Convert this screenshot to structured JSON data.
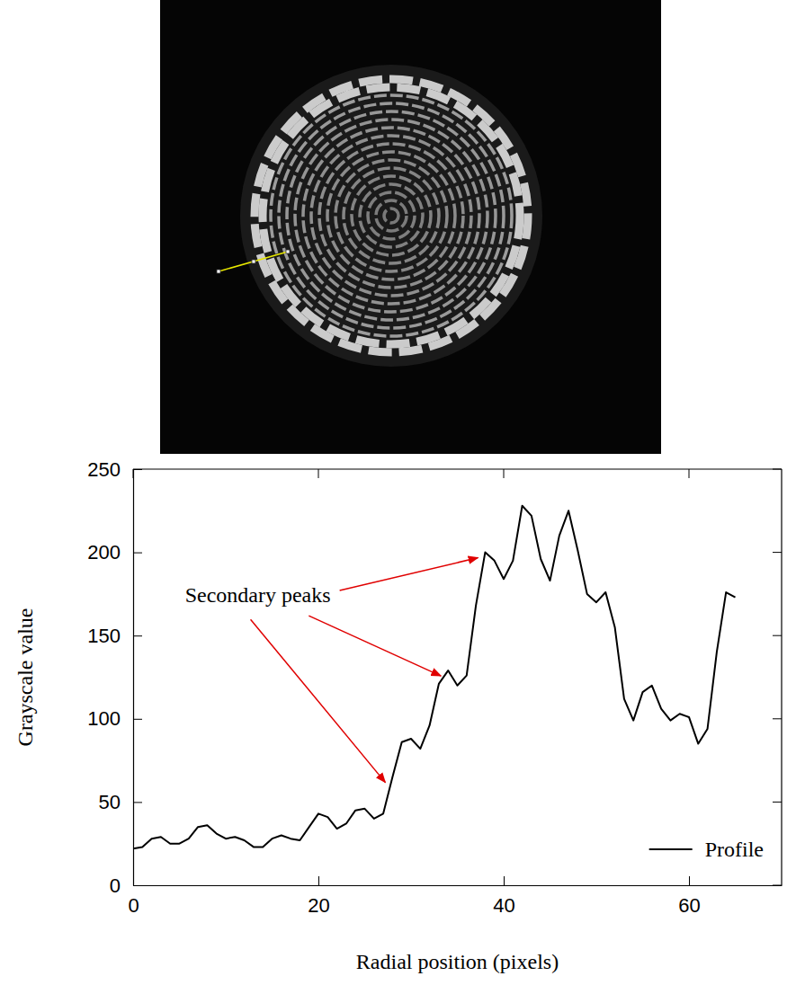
{
  "chart_data": {
    "type": "line",
    "xlabel": "Radial position (pixels)",
    "ylabel": "Grayscale value",
    "x": [
      0,
      1,
      2,
      3,
      4,
      5,
      6,
      7,
      8,
      9,
      10,
      11,
      12,
      13,
      14,
      15,
      16,
      17,
      18,
      19,
      20,
      21,
      22,
      23,
      24,
      25,
      26,
      27,
      28,
      29,
      30,
      31,
      32,
      33,
      34,
      35,
      36,
      37,
      38,
      39,
      40,
      41,
      42,
      43,
      44,
      45,
      46,
      47,
      48,
      49,
      50,
      51,
      52,
      53,
      54,
      55,
      56,
      57,
      58,
      59,
      60,
      61,
      62,
      63,
      64,
      65
    ],
    "series": [
      {
        "name": "Profile",
        "color": "#000000",
        "values": [
          22,
          23,
          28,
          29,
          25,
          25,
          28,
          35,
          36,
          31,
          28,
          29,
          27,
          23,
          23,
          28,
          30,
          28,
          27,
          35,
          43,
          41,
          34,
          37,
          45,
          46,
          40,
          43,
          65,
          86,
          88,
          82,
          96,
          121,
          129,
          120,
          126,
          168,
          200,
          195,
          184,
          195,
          228,
          222,
          196,
          183,
          210,
          225,
          201,
          175,
          170,
          176,
          155,
          112,
          99,
          116,
          120,
          106,
          99,
          103,
          101,
          85,
          94,
          140,
          176,
          173
        ]
      }
    ],
    "xlim": [
      0,
      70
    ],
    "ylim": [
      0,
      250
    ],
    "xticks": [
      0,
      20,
      40,
      60
    ],
    "yticks": [
      0,
      50,
      100,
      150,
      200,
      250
    ],
    "legend": "lower right",
    "annotations": [
      {
        "text": "Secondary peaks",
        "color": "#e00000",
        "targets": [
          28,
          34,
          38
        ]
      }
    ]
  }
}
